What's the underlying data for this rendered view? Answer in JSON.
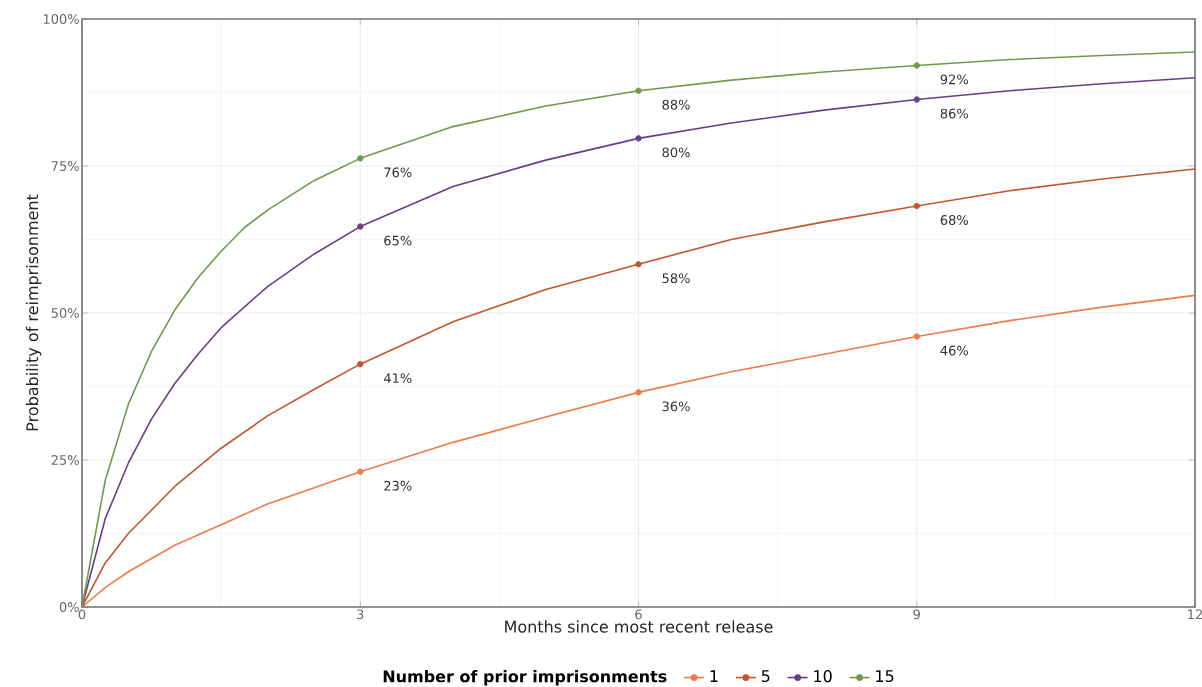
{
  "chart_data": {
    "type": "line",
    "xlabel": "Months since most recent release",
    "ylabel": "Probability of reimprisonment",
    "legend_title": "Number of prior imprisonments",
    "xlim": [
      0,
      12
    ],
    "ylim": [
      0,
      100
    ],
    "xticks": [
      0,
      3,
      6,
      9,
      12
    ],
    "yticks": [
      {
        "value": 0,
        "label": "0%"
      },
      {
        "value": 25,
        "label": "25%"
      },
      {
        "value": 50,
        "label": "50%"
      },
      {
        "value": 75,
        "label": "75%"
      },
      {
        "value": 100,
        "label": "100%"
      }
    ],
    "grid": true,
    "legend": "bottom",
    "series": [
      {
        "name": "1",
        "color": "#f07b4a",
        "x": [
          0,
          0.25,
          0.5,
          1,
          1.5,
          2,
          3,
          4,
          5,
          6,
          7,
          8,
          9,
          10,
          11,
          12
        ],
        "values": [
          0,
          3.3,
          6,
          10.5,
          14,
          17.5,
          23,
          28,
          32.3,
          36.5,
          40,
          43,
          46,
          48.7,
          51,
          53
        ]
      },
      {
        "name": "5",
        "color": "#c4562e",
        "x": [
          0,
          0.25,
          0.5,
          0.75,
          1,
          1.5,
          2,
          2.5,
          3,
          4,
          5,
          6,
          7,
          8,
          9,
          10,
          11,
          12
        ],
        "values": [
          0,
          7.5,
          12.5,
          16.5,
          20.5,
          27,
          32.5,
          37,
          41.3,
          48.5,
          54,
          58.3,
          62.5,
          65.5,
          68.2,
          70.8,
          72.8,
          74.5
        ]
      },
      {
        "name": "10",
        "color": "#6a3d8a",
        "x": [
          0,
          0.25,
          0.5,
          0.75,
          1,
          1.25,
          1.5,
          2,
          2.5,
          3,
          4,
          5,
          6,
          7,
          8,
          9,
          10,
          11,
          12
        ],
        "values": [
          0,
          15,
          24.5,
          32,
          38,
          43,
          47.5,
          54.5,
          60,
          64.7,
          71.5,
          76,
          79.7,
          82.3,
          84.5,
          86.3,
          87.8,
          89,
          90
        ]
      },
      {
        "name": "15",
        "color": "#6f9a4a",
        "x": [
          0,
          0.25,
          0.5,
          0.75,
          1,
          1.25,
          1.5,
          1.75,
          2,
          2.5,
          3,
          4,
          5,
          6,
          7,
          8,
          9,
          10,
          11,
          12
        ],
        "values": [
          0,
          21.5,
          34.5,
          43.5,
          50.5,
          56,
          60.5,
          64.5,
          67.5,
          72.5,
          76.3,
          81.7,
          85.2,
          87.8,
          89.6,
          91,
          92.1,
          93.1,
          93.8,
          94.4
        ]
      },
      {
        "type": "scatter",
        "marker": "circle",
        "color": "#f07b4a",
        "x": [
          3,
          6,
          9
        ],
        "values": [
          23,
          36.5,
          46
        ],
        "value_labels": [
          "23%",
          "36%",
          "46%"
        ]
      },
      {
        "type": "scatter",
        "marker": "circle",
        "color": "#c4562e",
        "x": [
          3,
          6,
          9
        ],
        "values": [
          41.3,
          58.3,
          68.2
        ],
        "value_labels": [
          "41%",
          "58%",
          "68%"
        ]
      },
      {
        "type": "scatter",
        "marker": "circle",
        "color": "#6a3d8a",
        "x": [
          3,
          6,
          9
        ],
        "values": [
          64.7,
          79.7,
          86.3
        ],
        "value_labels": [
          "65%",
          "80%",
          "86%"
        ]
      },
      {
        "type": "scatter",
        "marker": "circle",
        "color": "#6f9a4a",
        "x": [
          3,
          6,
          9
        ],
        "values": [
          76.3,
          87.8,
          92.1
        ],
        "value_labels": [
          "76%",
          "88%",
          "92%"
        ]
      }
    ]
  }
}
